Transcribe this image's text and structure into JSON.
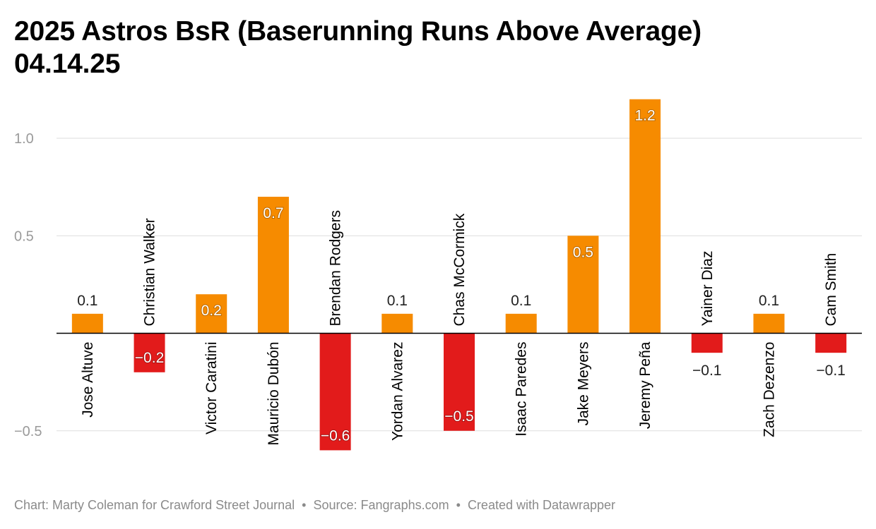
{
  "title_line1": "2025 Astros BsR (Baserunning Runs Above Average)",
  "title_line2": "04.14.25",
  "footer": {
    "credit": "Chart: Marty Coleman for Crawford Street Journal",
    "source": "Source: Fangraphs.com",
    "tool": "Created with Datawrapper",
    "separator": "•"
  },
  "colors": {
    "positive": "#f68b00",
    "negative": "#e21b1b",
    "grid": "#dddddd",
    "baseline": "#000000",
    "tick_label": "#9a9a9a"
  },
  "chart_data": {
    "type": "bar",
    "title": "2025 Astros BsR (Baserunning Runs Above Average) 04.14.25",
    "xlabel": "",
    "ylabel": "",
    "categories": [
      "Jose Altuve",
      "Christian Walker",
      "Victor Caratini",
      "Mauricio Dubón",
      "Brendan Rodgers",
      "Yordan Alvarez",
      "Chas McCormick",
      "Isaac Paredes",
      "Jake Meyers",
      "Jeremy Peña",
      "Yainer Diaz",
      "Zach Dezenzo",
      "Cam Smith"
    ],
    "values": [
      0.1,
      -0.2,
      0.2,
      0.7,
      -0.6,
      0.1,
      -0.5,
      0.1,
      0.5,
      1.2,
      -0.1,
      0.1,
      -0.1
    ],
    "value_labels": [
      "0.1",
      "−0.2",
      "0.2",
      "0.7",
      "−0.6",
      "0.1",
      "−0.5",
      "0.1",
      "0.5",
      "1.2",
      "−0.1",
      "0.1",
      "−0.1"
    ],
    "ylim": [
      -0.6,
      1.2
    ],
    "yticks": [
      {
        "value": 1.0,
        "label": "1.0"
      },
      {
        "value": 0.5,
        "label": "0.5"
      },
      {
        "value": -0.5,
        "label": "−0.5"
      }
    ],
    "grid": true,
    "legend": "none"
  }
}
